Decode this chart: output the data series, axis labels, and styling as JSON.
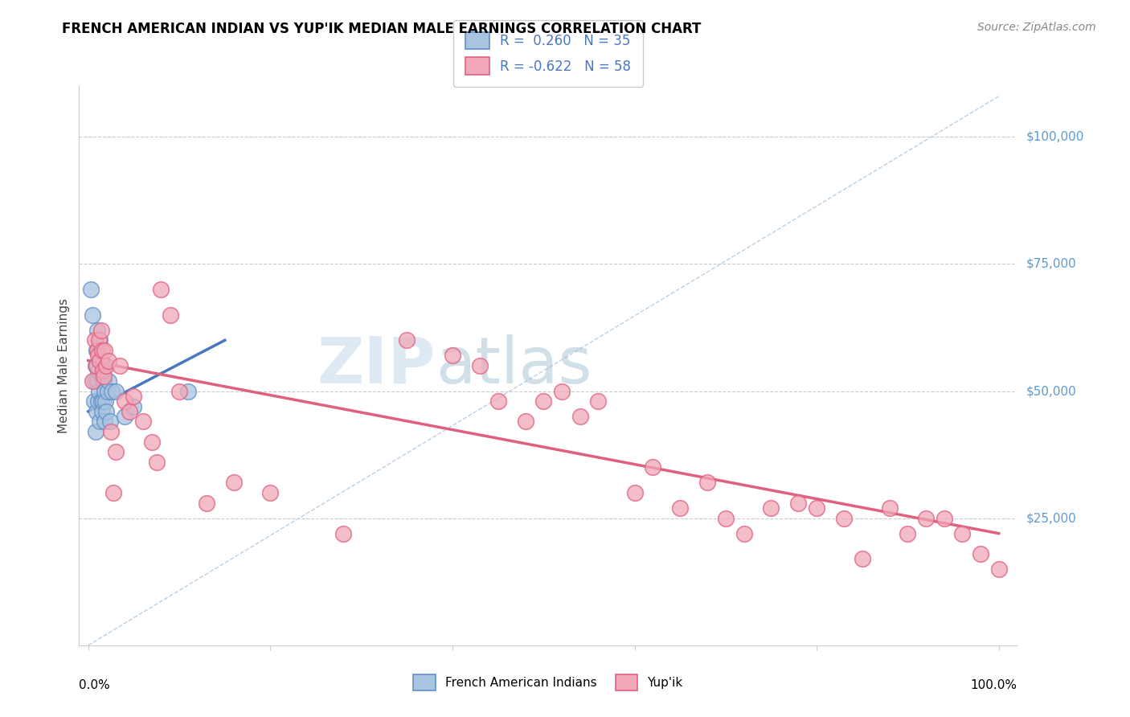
{
  "title": "FRENCH AMERICAN INDIAN VS YUP'IK MEDIAN MALE EARNINGS CORRELATION CHART",
  "source": "Source: ZipAtlas.com",
  "ylabel": "Median Male Earnings",
  "xlim": [
    0.0,
    1.0
  ],
  "ylim": [
    0,
    110000
  ],
  "blue_R": 0.26,
  "blue_N": 35,
  "pink_R": -0.622,
  "pink_N": 58,
  "blue_scatter_color": "#A8C4E0",
  "blue_edge_color": "#6090C8",
  "pink_scatter_color": "#F0A8B8",
  "pink_edge_color": "#E06080",
  "blue_line_color": "#4878C0",
  "pink_line_color": "#E06080",
  "dashed_line_color": "#B8D0E8",
  "ylabel_color": "#444444",
  "right_label_color": "#5B9BD5",
  "source_color": "#888888",
  "grid_color": "#CCCCCC",
  "blue_line_x": [
    0.0,
    0.15
  ],
  "blue_line_y": [
    46000,
    60000
  ],
  "pink_line_x": [
    0.0,
    1.0
  ],
  "pink_line_y": [
    56000,
    22000
  ],
  "dash_line_x": [
    0.0,
    1.0
  ],
  "dash_line_y": [
    0,
    108000
  ],
  "blue_scatter_x": [
    0.003,
    0.005,
    0.006,
    0.007,
    0.008,
    0.008,
    0.009,
    0.009,
    0.01,
    0.01,
    0.011,
    0.011,
    0.012,
    0.012,
    0.013,
    0.013,
    0.014,
    0.014,
    0.015,
    0.015,
    0.016,
    0.016,
    0.017,
    0.018,
    0.018,
    0.019,
    0.02,
    0.021,
    0.022,
    0.024,
    0.026,
    0.03,
    0.04,
    0.05,
    0.11
  ],
  "blue_scatter_y": [
    70000,
    65000,
    48000,
    52000,
    55000,
    42000,
    58000,
    46000,
    62000,
    52000,
    54000,
    48000,
    57000,
    50000,
    60000,
    44000,
    56000,
    48000,
    53000,
    46000,
    55000,
    48000,
    52000,
    50000,
    44000,
    48000,
    46000,
    50000,
    52000,
    44000,
    50000,
    50000,
    45000,
    47000,
    50000
  ],
  "pink_scatter_x": [
    0.005,
    0.007,
    0.009,
    0.01,
    0.011,
    0.012,
    0.013,
    0.014,
    0.015,
    0.016,
    0.017,
    0.018,
    0.02,
    0.022,
    0.025,
    0.028,
    0.03,
    0.035,
    0.04,
    0.045,
    0.05,
    0.06,
    0.07,
    0.075,
    0.08,
    0.09,
    0.1,
    0.13,
    0.16,
    0.2,
    0.28,
    0.35,
    0.4,
    0.43,
    0.45,
    0.48,
    0.5,
    0.52,
    0.54,
    0.56,
    0.6,
    0.62,
    0.65,
    0.68,
    0.7,
    0.72,
    0.75,
    0.78,
    0.8,
    0.83,
    0.85,
    0.88,
    0.9,
    0.92,
    0.94,
    0.96,
    0.98,
    1.0
  ],
  "pink_scatter_y": [
    52000,
    60000,
    55000,
    58000,
    57000,
    60000,
    56000,
    62000,
    58000,
    54000,
    53000,
    58000,
    55000,
    56000,
    42000,
    30000,
    38000,
    55000,
    48000,
    46000,
    49000,
    44000,
    40000,
    36000,
    70000,
    65000,
    50000,
    28000,
    32000,
    30000,
    22000,
    60000,
    57000,
    55000,
    48000,
    44000,
    48000,
    50000,
    45000,
    48000,
    30000,
    35000,
    27000,
    32000,
    25000,
    22000,
    27000,
    28000,
    27000,
    25000,
    17000,
    27000,
    22000,
    25000,
    25000,
    22000,
    18000,
    15000
  ]
}
